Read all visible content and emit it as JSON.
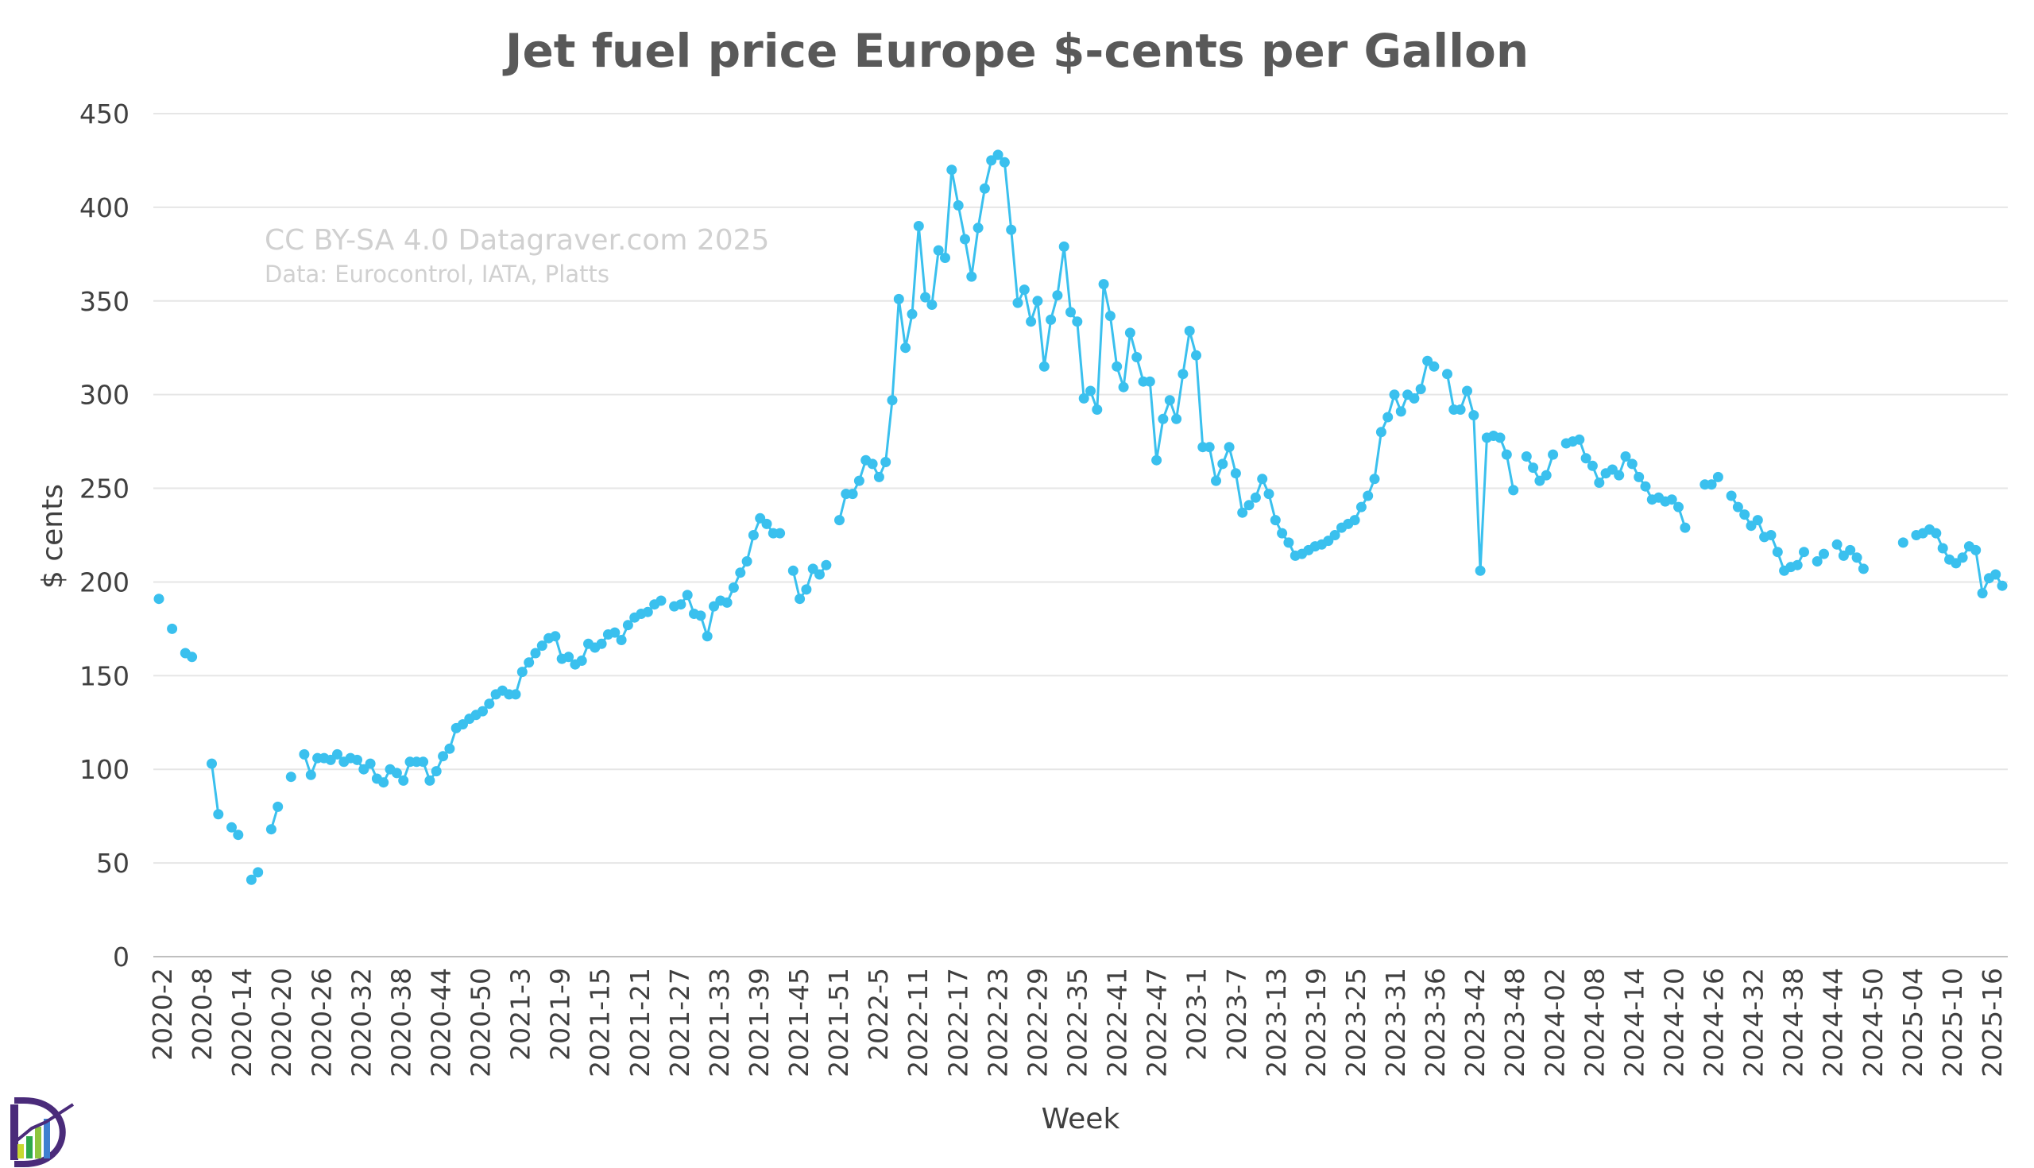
{
  "chart_data": {
    "type": "line",
    "title": "Jet fuel price Europe $-cents per Gallon",
    "xlabel": "Week",
    "ylabel": "$ cents",
    "ylim": [
      0,
      450
    ],
    "yticks": [
      0,
      50,
      100,
      150,
      200,
      250,
      300,
      350,
      400,
      450
    ],
    "grid": true,
    "watermark": "CC BY-SA 4.0 Datagraver.com 2025",
    "source": "Data:  Eurocontrol, IATA, Platts",
    "tick_labels": [
      "2020-2",
      "2020-8",
      "2020-14",
      "2020-20",
      "2020-26",
      "2020-32",
      "2020-38",
      "2020-44",
      "2020-50",
      "2021-3",
      "2021-9",
      "2021-15",
      "2021-21",
      "2021-27",
      "2021-33",
      "2021-39",
      "2021-45",
      "2021-51",
      "2022-5",
      "2022-11",
      "2022-17",
      "2022-23",
      "2022-29",
      "2022-35",
      "2022-41",
      "2022-47",
      "2023-1",
      "2023-7",
      "2023-13",
      "2023-19",
      "2023-25",
      "2023-31",
      "2023-36",
      "2023-42",
      "2023-48",
      "2024-02",
      "2024-08",
      "2024-14",
      "2024-20",
      "2024-26",
      "2024-32",
      "2024-38",
      "2024-44",
      "2024-50",
      "2025-04",
      "2025-10",
      "2025-16"
    ],
    "series": [
      {
        "name": "Jet fuel price Europe",
        "color": "#3ac0ee",
        "values": [
          191,
          null,
          175,
          null,
          162,
          160,
          null,
          null,
          103,
          76,
          null,
          69,
          65,
          null,
          41,
          45,
          null,
          68,
          80,
          null,
          96,
          null,
          108,
          97,
          106,
          106,
          105,
          108,
          104,
          106,
          105,
          100,
          103,
          95,
          93,
          100,
          98,
          94,
          104,
          104,
          104,
          94,
          99,
          107,
          111,
          122,
          124,
          127,
          129,
          131,
          135,
          140,
          142,
          140,
          140,
          152,
          157,
          162,
          166,
          170,
          171,
          159,
          160,
          156,
          158,
          167,
          165,
          167,
          172,
          173,
          169,
          177,
          181,
          183,
          184,
          188,
          190,
          null,
          187,
          188,
          193,
          183,
          182,
          171,
          187,
          190,
          189,
          197,
          205,
          211,
          225,
          234,
          231,
          226,
          226,
          null,
          206,
          191,
          196,
          207,
          204,
          209,
          null,
          233,
          247,
          247,
          254,
          265,
          263,
          256,
          264,
          297,
          351,
          325,
          343,
          390,
          352,
          348,
          377,
          373,
          420,
          401,
          383,
          363,
          389,
          410,
          425,
          428,
          424,
          388,
          349,
          356,
          339,
          350,
          315,
          340,
          353,
          379,
          344,
          339,
          298,
          302,
          292,
          359,
          342,
          315,
          304,
          333,
          320,
          307,
          307,
          265,
          287,
          297,
          287,
          311,
          334,
          321,
          272,
          272,
          254,
          263,
          272,
          258,
          237,
          241,
          245,
          255,
          247,
          233,
          226,
          221,
          214,
          215,
          217,
          219,
          220,
          222,
          225,
          229,
          231,
          233,
          240,
          246,
          255,
          280,
          288,
          300,
          291,
          300,
          298,
          303,
          318,
          315,
          null,
          311,
          292,
          292,
          302,
          289,
          206,
          277,
          278,
          277,
          268,
          249,
          null,
          267,
          261,
          254,
          257,
          268,
          null,
          274,
          275,
          276,
          266,
          262,
          253,
          258,
          260,
          257,
          267,
          263,
          256,
          251,
          244,
          245,
          243,
          244,
          240,
          229,
          null,
          null,
          252,
          252,
          256,
          null,
          246,
          240,
          236,
          230,
          233,
          224,
          225,
          216,
          206,
          208,
          209,
          216,
          null,
          211,
          215,
          null,
          220,
          214,
          217,
          213,
          207,
          null,
          null,
          null,
          null,
          null,
          221,
          null,
          225,
          226,
          228,
          226,
          218,
          212,
          210,
          213,
          219,
          217,
          194,
          202,
          204,
          198
        ]
      }
    ]
  }
}
